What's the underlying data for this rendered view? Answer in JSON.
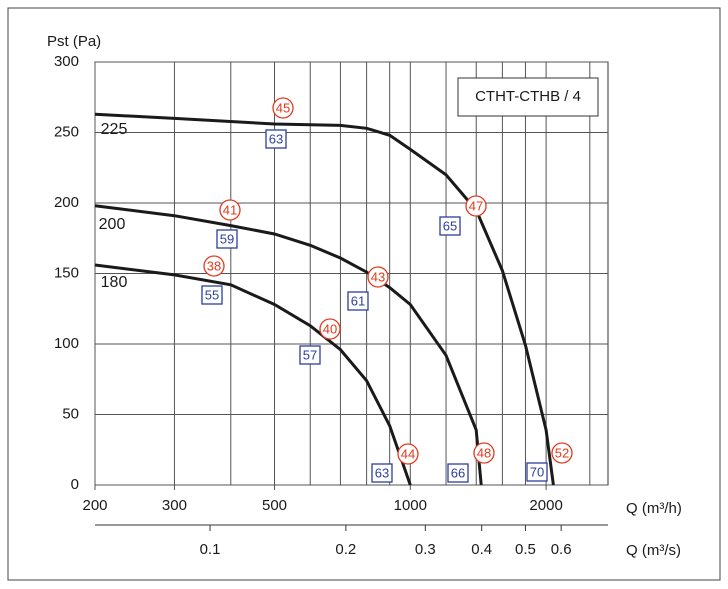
{
  "chart_data": {
    "type": "line",
    "box_label": "CTHT-CTHB / 4",
    "y_label": "Pst (Pa)",
    "x_label": "Q (m³/h)",
    "x2_label": "Q (m³/s)",
    "xscale": "log",
    "xlim": [
      200,
      2743
    ],
    "xticks": [
      200,
      300,
      500,
      1000,
      2000
    ],
    "xgrid": [
      400,
      600,
      700,
      800,
      900,
      1200,
      1400,
      1600,
      1800,
      2500
    ],
    "x2lim": [
      0.0556,
      0.762
    ],
    "x2ticks": [
      0.1,
      0.2,
      0.3,
      0.4,
      0.5,
      0.6
    ],
    "ylim": [
      0,
      300
    ],
    "yticks": [
      0,
      50,
      100,
      150,
      200,
      250,
      300
    ],
    "grid": true,
    "series": [
      {
        "name": "225",
        "color": "#1a1a1a",
        "x": [
          200,
          300,
          500,
          700,
          800,
          900,
          1000,
          1200,
          1400,
          1600,
          1800,
          2000,
          2076
        ],
        "values": [
          263,
          260,
          256,
          255,
          253,
          248,
          238,
          220,
          195,
          152,
          99,
          39,
          0
        ]
      },
      {
        "name": "200",
        "color": "#1a1a1a",
        "x": [
          200,
          300,
          400,
          500,
          600,
          700,
          800,
          900,
          1000,
          1200,
          1400,
          1436
        ],
        "values": [
          198,
          191,
          184,
          178,
          170,
          161,
          151,
          140,
          128,
          92,
          39,
          0
        ]
      },
      {
        "name": "180",
        "color": "#1a1a1a",
        "x": [
          200,
          300,
          400,
          500,
          600,
          700,
          800,
          900,
          1000
        ],
        "values": [
          156,
          149,
          142,
          128,
          113,
          96,
          74,
          42,
          0
        ]
      }
    ],
    "annotations": [
      {
        "text": "45",
        "style": "circle"
      },
      {
        "text": "63",
        "style": "square"
      },
      {
        "text": "41",
        "style": "circle"
      },
      {
        "text": "59",
        "style": "square"
      },
      {
        "text": "47",
        "style": "circle"
      },
      {
        "text": "65",
        "style": "square"
      },
      {
        "text": "38",
        "style": "circle"
      },
      {
        "text": "55",
        "style": "square"
      },
      {
        "text": "43",
        "style": "circle"
      },
      {
        "text": "61",
        "style": "square"
      },
      {
        "text": "40",
        "style": "circle"
      },
      {
        "text": "57",
        "style": "square"
      },
      {
        "text": "44",
        "style": "circle"
      },
      {
        "text": "63",
        "style": "square"
      },
      {
        "text": "48",
        "style": "circle"
      },
      {
        "text": "66",
        "style": "square"
      },
      {
        "text": "52",
        "style": "circle"
      },
      {
        "text": "70",
        "style": "square"
      }
    ]
  }
}
